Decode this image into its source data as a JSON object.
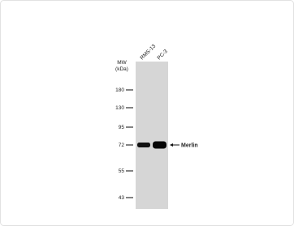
{
  "blot": {
    "mw_label": "MW",
    "mw_unit": "(kDa)",
    "lanes": [
      "RMS-13",
      "PC-3"
    ],
    "markers": [
      "180",
      "130",
      "95",
      "72",
      "55",
      "43"
    ],
    "band_label": "Merlin"
  }
}
